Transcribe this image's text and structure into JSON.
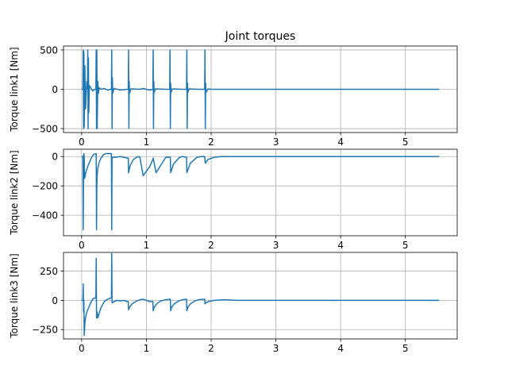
{
  "chart_data": [
    {
      "type": "line",
      "title": "Joint torques",
      "xlabel": "",
      "ylabel": "Torque link1 [Nm]",
      "xlim": [
        -0.28,
        5.8
      ],
      "ylim": [
        -550,
        550
      ],
      "xticks": [
        0,
        1,
        2,
        3,
        4,
        5
      ],
      "yticks": [
        -500,
        0,
        500
      ],
      "grid": true,
      "series": [
        {
          "color": "#1f77b4",
          "x": [
            0,
            0.02,
            0.025,
            0.03,
            0.035,
            0.04,
            0.05,
            0.06,
            0.08,
            0.09,
            0.095,
            0.1,
            0.105,
            0.11,
            0.12,
            0.14,
            0.17,
            0.2,
            0.22,
            0.225,
            0.23,
            0.235,
            0.24,
            0.25,
            0.26,
            0.27,
            0.3,
            0.35,
            0.4,
            0.45,
            0.46,
            0.465,
            0.47,
            0.475,
            0.48,
            0.5,
            0.55,
            0.6,
            0.7,
            0.72,
            0.725,
            0.73,
            0.735,
            0.74,
            0.76,
            0.9,
            0.95,
            1.05,
            1.1,
            1.105,
            1.11,
            1.115,
            1.12,
            1.14,
            1.3,
            1.35,
            1.36,
            1.365,
            1.37,
            1.375,
            1.38,
            1.4,
            1.55,
            1.6,
            1.62,
            1.625,
            1.63,
            1.635,
            1.64,
            1.66,
            1.8,
            1.85,
            1.9,
            1.905,
            1.91,
            1.915,
            1.92,
            1.95,
            2.0,
            2.2,
            3.0,
            4.0,
            5.0,
            5.52
          ],
          "y": [
            0,
            0,
            500,
            -500,
            480,
            -480,
            300,
            -250,
            100,
            0,
            500,
            -500,
            400,
            -300,
            50,
            20,
            -20,
            0,
            0,
            500,
            -500,
            500,
            -500,
            100,
            -50,
            20,
            0,
            10,
            -10,
            0,
            0,
            500,
            -500,
            150,
            -50,
            10,
            0,
            -10,
            0,
            0,
            500,
            -500,
            100,
            -50,
            5,
            0,
            10,
            -10,
            0,
            500,
            -500,
            100,
            -40,
            5,
            0,
            0,
            0,
            500,
            -500,
            80,
            -40,
            5,
            0,
            0,
            0,
            500,
            -500,
            80,
            -40,
            5,
            0,
            0,
            0,
            500,
            -500,
            80,
            -40,
            5,
            0,
            0,
            0,
            0,
            0,
            0
          ]
        }
      ]
    },
    {
      "type": "line",
      "title": "",
      "xlabel": "",
      "ylabel": "Torque link2 [Nm]",
      "xlim": [
        -0.28,
        5.8
      ],
      "ylim": [
        -540,
        50
      ],
      "xticks": [
        0,
        1,
        2,
        3,
        4,
        5
      ],
      "yticks": [
        -400,
        -200,
        0
      ],
      "grid": true,
      "series": [
        {
          "color": "#1f77b4",
          "x": [
            0,
            0.02,
            0.025,
            0.03,
            0.035,
            0.04,
            0.045,
            0.05,
            0.07,
            0.1,
            0.13,
            0.16,
            0.19,
            0.22,
            0.225,
            0.23,
            0.235,
            0.24,
            0.25,
            0.27,
            0.3,
            0.33,
            0.37,
            0.42,
            0.46,
            0.465,
            0.47,
            0.48,
            0.52,
            0.6,
            0.65,
            0.7,
            0.72,
            0.725,
            0.75,
            0.8,
            0.85,
            0.88,
            0.9,
            0.95,
            1.05,
            1.1,
            1.105,
            1.15,
            1.25,
            1.3,
            1.35,
            1.37,
            1.375,
            1.42,
            1.5,
            1.55,
            1.62,
            1.625,
            1.68,
            1.78,
            1.85,
            1.9,
            1.91,
            1.95,
            2.05,
            2.15,
            2.3,
            3.0,
            4.0,
            5.0,
            5.52
          ],
          "y": [
            0,
            0,
            -500,
            0,
            20,
            -5,
            -150,
            -140,
            -100,
            -60,
            -30,
            0,
            15,
            20,
            20,
            -500,
            -200,
            -130,
            -80,
            -40,
            -10,
            10,
            20,
            20,
            20,
            -500,
            -10,
            -5,
            -5,
            0,
            -5,
            -10,
            -10,
            -110,
            -60,
            -20,
            -5,
            0,
            -5,
            -130,
            -70,
            -20,
            -10,
            -110,
            -40,
            -5,
            -5,
            -5,
            -110,
            -50,
            -10,
            0,
            -5,
            -110,
            -45,
            -5,
            0,
            0,
            -45,
            -20,
            -5,
            0,
            0,
            0,
            0,
            0,
            0
          ]
        }
      ]
    },
    {
      "type": "line",
      "title": "",
      "xlabel": "",
      "ylabel": "Torque link3 [Nm]",
      "xlim": [
        -0.28,
        5.8
      ],
      "ylim": [
        -330,
        410
      ],
      "xticks": [
        0,
        1,
        2,
        3,
        4,
        5
      ],
      "yticks": [
        -250,
        0,
        250
      ],
      "grid": true,
      "series": [
        {
          "color": "#1f77b4",
          "x": [
            0,
            0.02,
            0.025,
            0.03,
            0.035,
            0.04,
            0.05,
            0.06,
            0.08,
            0.11,
            0.14,
            0.17,
            0.2,
            0.22,
            0.225,
            0.23,
            0.235,
            0.24,
            0.25,
            0.26,
            0.3,
            0.35,
            0.4,
            0.45,
            0.46,
            0.465,
            0.47,
            0.48,
            0.5,
            0.55,
            0.6,
            0.65,
            0.7,
            0.72,
            0.725,
            0.74,
            0.78,
            0.85,
            0.9,
            0.95,
            1.05,
            1.1,
            1.105,
            1.12,
            1.16,
            1.22,
            1.3,
            1.37,
            1.375,
            1.39,
            1.43,
            1.5,
            1.55,
            1.62,
            1.625,
            1.64,
            1.68,
            1.75,
            1.8,
            1.9,
            1.905,
            1.92,
            1.96,
            2.05,
            2.2,
            2.4,
            3.0,
            4.0,
            5.0,
            5.52
          ],
          "y": [
            0,
            0,
            140,
            -100,
            0,
            -300,
            -200,
            -150,
            -100,
            -60,
            -20,
            10,
            20,
            20,
            360,
            -150,
            -120,
            -100,
            -150,
            -130,
            -60,
            -10,
            10,
            20,
            20,
            400,
            -20,
            -20,
            -10,
            0,
            -5,
            0,
            -10,
            -10,
            -80,
            -60,
            -30,
            -5,
            5,
            10,
            -10,
            -10,
            -90,
            -60,
            -30,
            -5,
            5,
            10,
            -90,
            -60,
            -30,
            -5,
            5,
            10,
            -90,
            -60,
            -30,
            -5,
            5,
            10,
            -30,
            -20,
            -10,
            0,
            5,
            0,
            0,
            0,
            0,
            0
          ]
        }
      ]
    }
  ]
}
